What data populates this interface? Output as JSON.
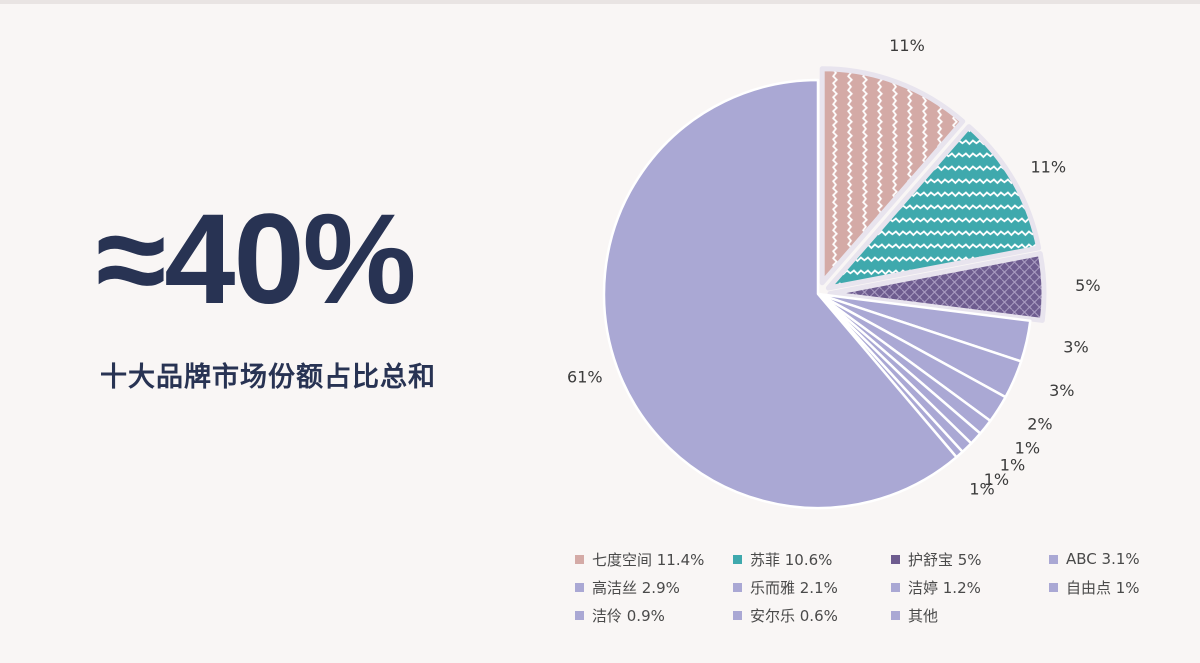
{
  "headline": {
    "value": "≈40%",
    "caption": "十大品牌市场份额占比总和"
  },
  "chart_data": {
    "type": "pie",
    "title": "",
    "start_angle_deg": 0,
    "direction": "clockwise",
    "slices": [
      {
        "name": "七度空间",
        "legend": "七度空间 11.4%",
        "value": 11.4,
        "label": "11%",
        "color": "#d4aaa6",
        "pattern": "zigzag",
        "exploded": true
      },
      {
        "name": "苏菲",
        "legend": "苏菲 10.6%",
        "value": 10.6,
        "label": "11%",
        "color": "#3fa9ad",
        "pattern": "zigzag",
        "exploded": true
      },
      {
        "name": "护舒宝",
        "legend": "护舒宝 5%",
        "value": 5,
        "label": "5%",
        "color": "#6e5c8f",
        "pattern": "weave",
        "exploded": true
      },
      {
        "name": "ABC",
        "legend": "ABC 3.1%",
        "value": 3.1,
        "label": "3%",
        "color": "#aaa8d4",
        "pattern": "none",
        "exploded": false
      },
      {
        "name": "高洁丝",
        "legend": "高洁丝 2.9%",
        "value": 2.9,
        "label": "3%",
        "color": "#aaa8d4",
        "pattern": "none",
        "exploded": false
      },
      {
        "name": "乐而雅",
        "legend": "乐而雅 2.1%",
        "value": 2.1,
        "label": "2%",
        "color": "#aaa8d4",
        "pattern": "none",
        "exploded": false
      },
      {
        "name": "洁婷",
        "legend": "洁婷 1.2%",
        "value": 1.2,
        "label": "1%",
        "color": "#aaa8d4",
        "pattern": "none",
        "exploded": false
      },
      {
        "name": "自由点",
        "legend": "自由点 1%",
        "value": 1.0,
        "label": "1%",
        "color": "#aaa8d4",
        "pattern": "none",
        "exploded": false
      },
      {
        "name": "洁伶",
        "legend": "洁伶 0.9%",
        "value": 0.9,
        "label": "1%",
        "color": "#aaa8d4",
        "pattern": "none",
        "exploded": false
      },
      {
        "name": "安尔乐",
        "legend": "安尔乐 0.6%",
        "value": 0.6,
        "label": "1%",
        "color": "#aaa8d4",
        "pattern": "none",
        "exploded": false
      },
      {
        "name": "其他",
        "legend": "其他",
        "value": 61.2,
        "label": "61%",
        "color": "#aaa8d4",
        "pattern": "none",
        "exploded": false
      }
    ],
    "legend_position": "bottom"
  }
}
